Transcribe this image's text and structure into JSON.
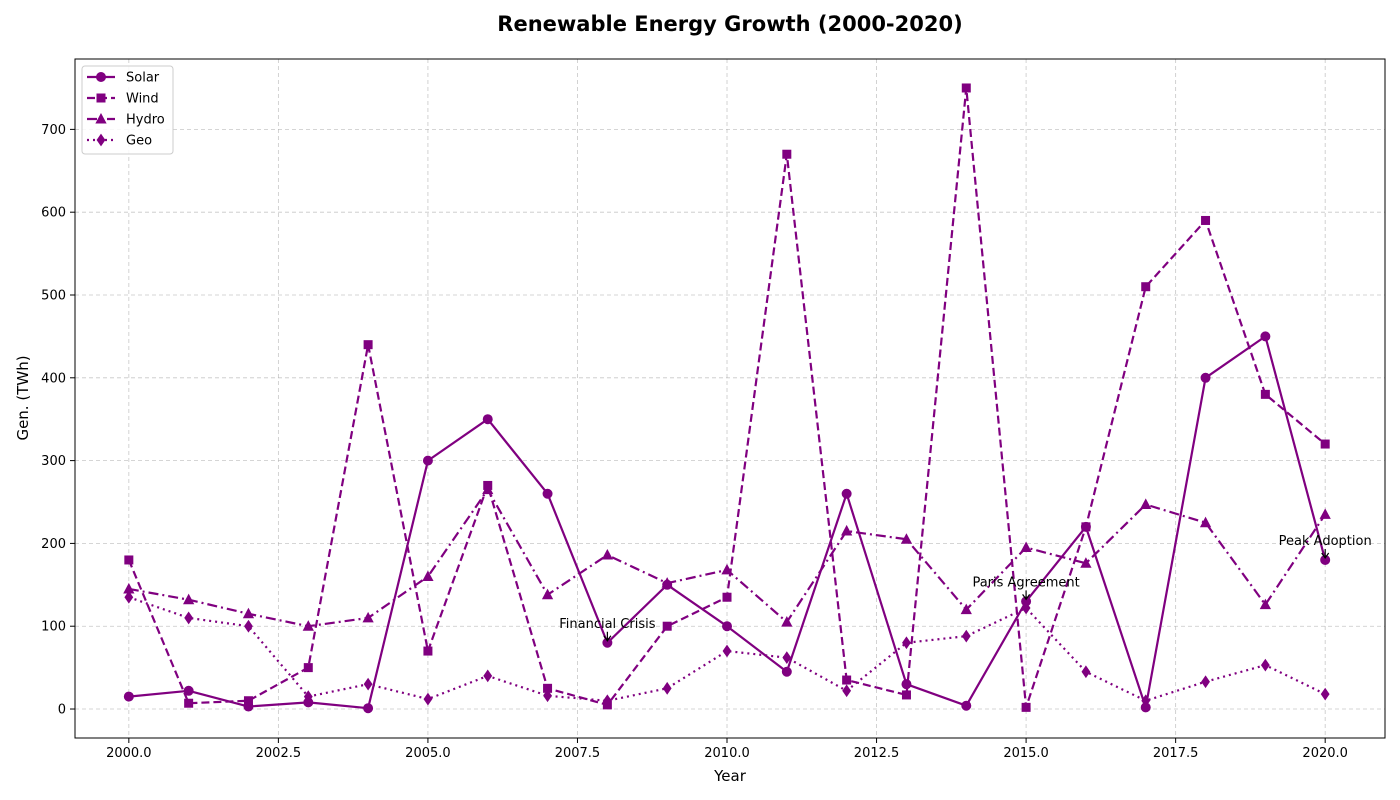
{
  "chart_data": {
    "type": "line",
    "title": "Renewable Energy Growth (2000-2020)",
    "xlabel": "Year",
    "ylabel": "Gen. (TWh)",
    "xlim": [
      1999.1,
      2021.0
    ],
    "ylim": [
      -35,
      785
    ],
    "xticks": [
      2000.0,
      2002.5,
      2005.0,
      2007.5,
      2010.0,
      2012.5,
      2015.0,
      2017.5,
      2020.0
    ],
    "xtick_labels": [
      "2000.0",
      "2002.5",
      "2005.0",
      "2007.5",
      "2010.0",
      "2012.5",
      "2015.0",
      "2017.5",
      "2020.0"
    ],
    "yticks": [
      0,
      100,
      200,
      300,
      400,
      500,
      600,
      700
    ],
    "ytick_labels": [
      "0",
      "100",
      "200",
      "300",
      "400",
      "500",
      "600",
      "700"
    ],
    "grid": true,
    "legend_position": "top-left",
    "color": "#800080",
    "x": [
      2000,
      2001,
      2002,
      2003,
      2004,
      2005,
      2006,
      2007,
      2008,
      2009,
      2010,
      2011,
      2012,
      2013,
      2014,
      2015,
      2016,
      2017,
      2018,
      2019,
      2020
    ],
    "series": [
      {
        "name": "Solar",
        "linestyle": "solid",
        "marker": "circle",
        "values": [
          15,
          22,
          3,
          8,
          1,
          300,
          350,
          260,
          80,
          150,
          100,
          45,
          260,
          30,
          4,
          130,
          220,
          2,
          400,
          450,
          180
        ]
      },
      {
        "name": "Wind",
        "linestyle": "dashed",
        "marker": "square",
        "values": [
          180,
          7,
          10,
          50,
          440,
          70,
          270,
          25,
          5,
          100,
          135,
          670,
          35,
          17,
          750,
          2,
          220,
          510,
          590,
          380,
          320
        ]
      },
      {
        "name": "Hydro",
        "linestyle": "dashdot",
        "marker": "triangle",
        "values": [
          145,
          132,
          115,
          100,
          110,
          160,
          265,
          138,
          186,
          152,
          168,
          105,
          215,
          205,
          120,
          195,
          176,
          247,
          225,
          126,
          235
        ]
      },
      {
        "name": "Geo",
        "linestyle": "dotted",
        "marker": "diamond",
        "values": [
          135,
          110,
          100,
          15,
          30,
          12,
          40,
          16,
          10,
          25,
          70,
          62,
          22,
          80,
          88,
          122,
          45,
          10,
          33,
          53,
          18
        ]
      }
    ],
    "annotations": [
      {
        "text": "Financial Crisis",
        "x": 2008,
        "y": 80
      },
      {
        "text": "Paris Agreement",
        "x": 2015,
        "y": 130
      },
      {
        "text": "Peak Adoption",
        "x": 2020,
        "y": 180
      }
    ]
  }
}
